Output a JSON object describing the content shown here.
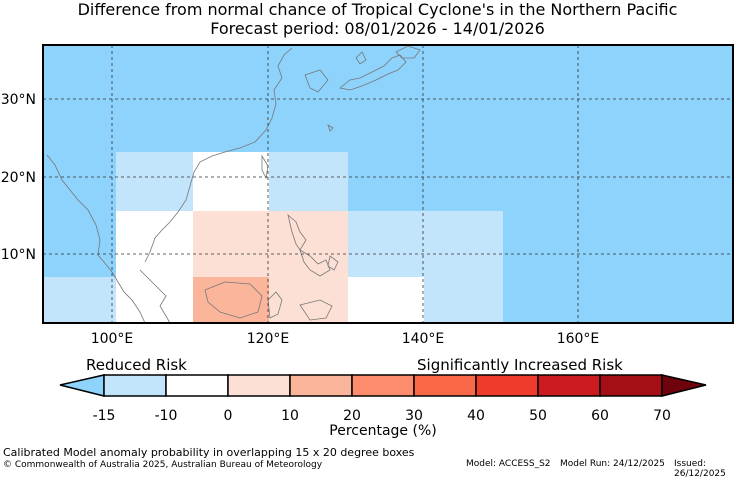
{
  "title_line1": "Difference from normal chance of Tropical Cyclone's in the Northern Pacific",
  "title_line2": "Forecast period: 08/01/2026 - 14/01/2026",
  "lat_ticks": [
    "30°N",
    "20°N",
    "10°N"
  ],
  "lon_ticks": [
    "100°E",
    "120°E",
    "140°E",
    "160°E"
  ],
  "colorbar": {
    "left_caption": "Reduced Risk",
    "right_caption": "Significantly Increased Risk",
    "axis_label": "Percentage (%)",
    "ticks": [
      "-15",
      "-10",
      "0",
      "10",
      "20",
      "30",
      "40",
      "50",
      "60",
      "70"
    ],
    "colors": [
      "#8dd3fb",
      "#c2e5fb",
      "#ffffff",
      "#fde0d5",
      "#fbb59b",
      "#fc8c6c",
      "#f96847",
      "#ee3b2b",
      "#cc1b1e",
      "#a30f15",
      "#6e020d"
    ]
  },
  "footer_line1": "Calibrated Model anomaly probability in overlapping 15 x 20 degree boxes",
  "footer_line2": "© Commonwealth of Australia 2025, Australian Bureau of Meteorology",
  "model": "Model: ACCESS_S2",
  "model_run": "Model Run: 24/12/2025",
  "issued": "Issued: 26/12/2025",
  "map_colors": {
    "background": "#8dd3fb",
    "light_blue": "#c2e5fb",
    "white": "#ffffff",
    "light_pink": "#fde0d5",
    "salmon": "#fbb59b"
  }
}
